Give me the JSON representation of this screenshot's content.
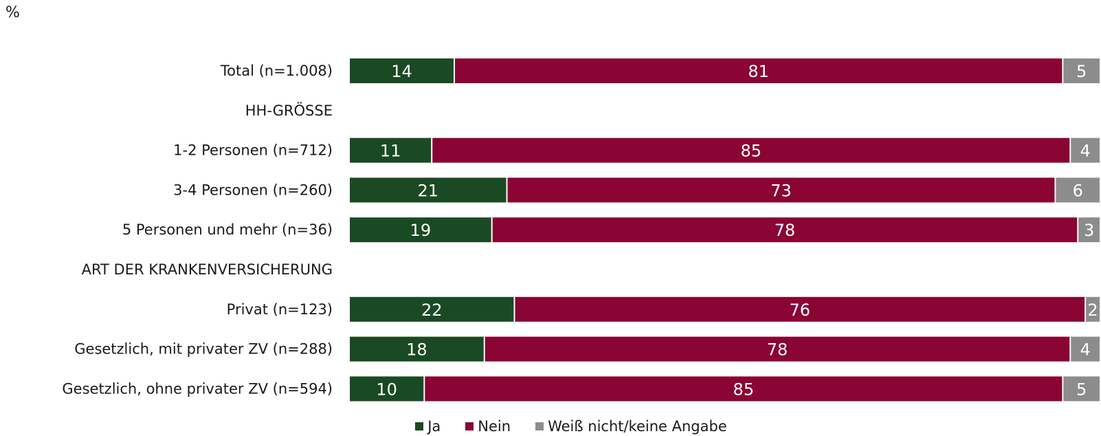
{
  "unit": "%",
  "colors": {
    "Ja": "#1a4a23",
    "Nein": "#8a0434",
    "Weiß nicht/keine Angabe": "#8c8c8c"
  },
  "chart_data": {
    "type": "bar",
    "orientation": "horizontal",
    "stacked": true,
    "xlim": [
      0,
      100
    ],
    "categories": [
      "Total (n=1.008)",
      "HH-GRÖSSE",
      "1-2 Personen (n=712)",
      "3-4 Personen (n=260)",
      "5 Personen und mehr (n=36)",
      "ART DER KRANKENVERSICHERUNG",
      "Privat (n=123)",
      "Gesetzlich, mit privater ZV (n=288)",
      "Gesetzlich, ohne privater ZV (n=594)"
    ],
    "series": [
      {
        "name": "Ja",
        "values": [
          14,
          null,
          11,
          21,
          19,
          null,
          22,
          18,
          10
        ]
      },
      {
        "name": "Nein",
        "values": [
          81,
          null,
          85,
          73,
          78,
          null,
          76,
          78,
          85
        ]
      },
      {
        "name": "Weiß nicht/keine Angabe",
        "values": [
          5,
          null,
          4,
          6,
          3,
          null,
          2,
          4,
          5
        ]
      }
    ],
    "legend": "bottom"
  }
}
